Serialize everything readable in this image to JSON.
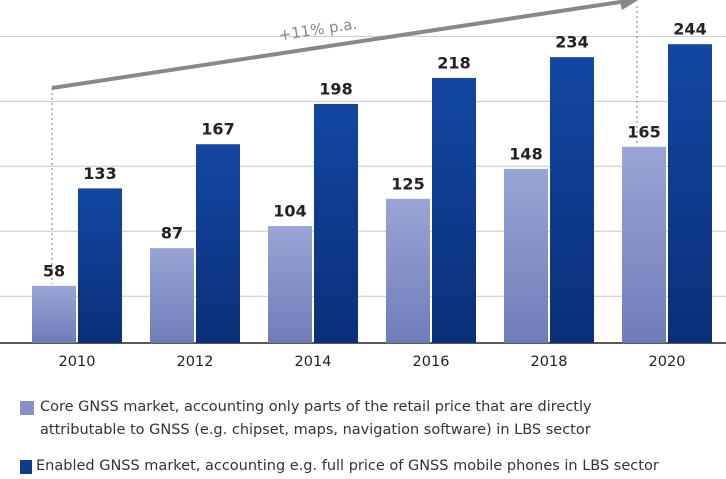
{
  "chart_data": {
    "type": "bar",
    "annotation": "+11% p.a.",
    "categories": [
      "2010",
      "2012",
      "2014",
      "2016",
      "2018",
      "2020"
    ],
    "series": [
      {
        "name": "Core GNSS market, accounting only parts of the retail price that are directly attributable to GNSS (e.g. chipset, maps, navigation software) in LBS sector",
        "color": "#8591c8",
        "values": [
          58,
          87,
          104,
          125,
          148,
          165
        ]
      },
      {
        "name": "Enabled GNSS market, accounting e.g. full price of GNSS mobile phones in LBS sector",
        "color": "#0f3b8e",
        "values": [
          133,
          167,
          198,
          218,
          234,
          244
        ]
      }
    ],
    "ylim": [
      14,
      278
    ],
    "yticks": [
      50,
      100,
      150,
      200,
      250
    ],
    "grid": true
  }
}
